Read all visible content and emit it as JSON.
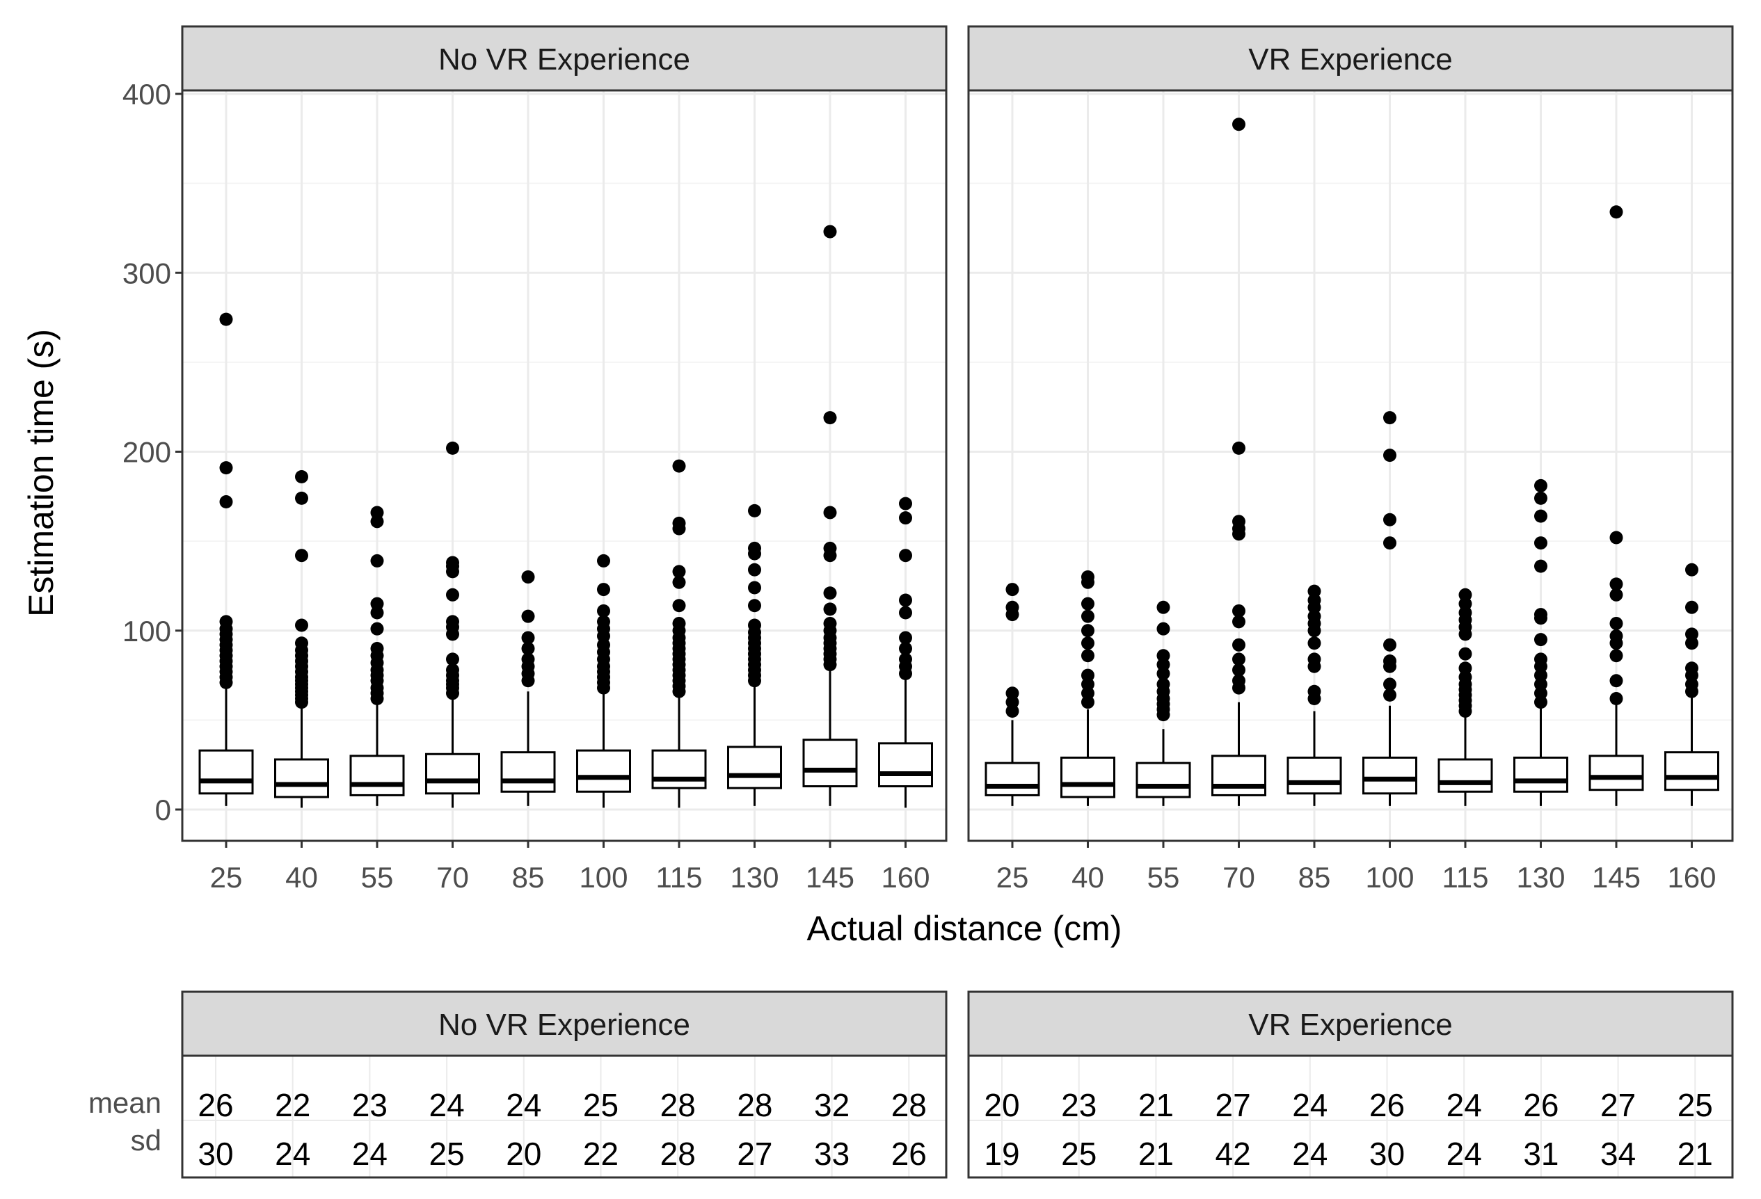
{
  "chart_data": {
    "type": "boxplot",
    "xlabel": "Actual distance (cm)",
    "ylabel": "Estimation time (s)",
    "ylim": [
      -18,
      400
    ],
    "yticks": [
      0,
      100,
      200,
      300,
      400
    ],
    "categories": [
      "25",
      "40",
      "55",
      "70",
      "85",
      "100",
      "115",
      "130",
      "145",
      "160"
    ],
    "panels": [
      {
        "name": "No VR Experience",
        "boxes": [
          {
            "q1": 9,
            "median": 16,
            "q3": 33,
            "lower": 2,
            "upper": 70
          },
          {
            "q1": 7,
            "median": 14,
            "q3": 28,
            "lower": 1,
            "upper": 60
          },
          {
            "q1": 8,
            "median": 14,
            "q3": 30,
            "lower": 2,
            "upper": 62
          },
          {
            "q1": 9,
            "median": 16,
            "q3": 31,
            "lower": 1,
            "upper": 64
          },
          {
            "q1": 10,
            "median": 16,
            "q3": 32,
            "lower": 2,
            "upper": 66
          },
          {
            "q1": 10,
            "median": 18,
            "q3": 33,
            "lower": 1,
            "upper": 67
          },
          {
            "q1": 12,
            "median": 17,
            "q3": 33,
            "lower": 1,
            "upper": 66
          },
          {
            "q1": 12,
            "median": 19,
            "q3": 35,
            "lower": 2,
            "upper": 70
          },
          {
            "q1": 13,
            "median": 22,
            "q3": 39,
            "lower": 2,
            "upper": 80
          },
          {
            "q1": 13,
            "median": 20,
            "q3": 37,
            "lower": 1,
            "upper": 74
          }
        ],
        "outliers": [
          [
            71,
            74,
            77,
            80,
            83,
            86,
            89,
            92,
            95,
            98,
            101,
            105,
            172,
            191,
            274
          ],
          [
            60,
            62,
            64,
            66,
            68,
            70,
            72,
            74,
            77,
            80,
            83,
            86,
            89,
            93,
            103,
            142,
            174,
            186
          ],
          [
            62,
            65,
            68,
            72,
            75,
            78,
            82,
            86,
            90,
            101,
            110,
            115,
            139,
            161,
            166
          ],
          [
            65,
            68,
            70,
            72,
            75,
            78,
            84,
            98,
            102,
            105,
            120,
            133,
            136,
            138,
            202
          ],
          [
            72,
            76,
            80,
            84,
            90,
            96,
            108,
            130
          ],
          [
            68,
            71,
            74,
            77,
            80,
            84,
            88,
            92,
            97,
            101,
            105,
            111,
            123,
            139
          ],
          [
            66,
            69,
            72,
            75,
            78,
            81,
            84,
            87,
            90,
            93,
            96,
            100,
            104,
            114,
            127,
            133,
            157,
            160,
            192
          ],
          [
            72,
            75,
            78,
            81,
            84,
            87,
            90,
            93,
            96,
            99,
            103,
            114,
            124,
            134,
            143,
            146,
            167
          ],
          [
            81,
            84,
            87,
            90,
            93,
            96,
            100,
            104,
            112,
            121,
            142,
            146,
            166,
            219,
            323
          ],
          [
            76,
            80,
            84,
            90,
            96,
            110,
            117,
            142,
            163,
            171
          ]
        ]
      },
      {
        "name": "VR Experience",
        "boxes": [
          {
            "q1": 8,
            "median": 13,
            "q3": 26,
            "lower": 2,
            "upper": 50
          },
          {
            "q1": 7,
            "median": 14,
            "q3": 29,
            "lower": 2,
            "upper": 56
          },
          {
            "q1": 7,
            "median": 13,
            "q3": 26,
            "lower": 2,
            "upper": 45
          },
          {
            "q1": 8,
            "median": 13,
            "q3": 30,
            "lower": 2,
            "upper": 60
          },
          {
            "q1": 9,
            "median": 15,
            "q3": 29,
            "lower": 2,
            "upper": 55
          },
          {
            "q1": 9,
            "median": 17,
            "q3": 29,
            "lower": 2,
            "upper": 58
          },
          {
            "q1": 10,
            "median": 15,
            "q3": 28,
            "lower": 2,
            "upper": 52
          },
          {
            "q1": 10,
            "median": 16,
            "q3": 29,
            "lower": 2,
            "upper": 57
          },
          {
            "q1": 11,
            "median": 18,
            "q3": 30,
            "lower": 2,
            "upper": 60
          },
          {
            "q1": 11,
            "median": 18,
            "q3": 32,
            "lower": 2,
            "upper": 65
          }
        ],
        "outliers": [
          [
            55,
            60,
            65,
            109,
            113,
            123
          ],
          [
            60,
            65,
            70,
            75,
            86,
            93,
            100,
            108,
            115,
            127,
            130
          ],
          [
            53,
            56,
            59,
            62,
            66,
            70,
            76,
            81,
            86,
            101,
            113
          ],
          [
            68,
            72,
            78,
            84,
            92,
            105,
            111,
            154,
            157,
            161,
            202,
            383
          ],
          [
            62,
            66,
            80,
            84,
            93,
            100,
            104,
            108,
            113,
            117,
            122
          ],
          [
            64,
            70,
            80,
            83,
            92,
            149,
            162,
            198,
            219
          ],
          [
            55,
            58,
            61,
            64,
            67,
            70,
            74,
            79,
            87,
            98,
            102,
            106,
            110,
            115,
            120
          ],
          [
            60,
            65,
            70,
            75,
            80,
            84,
            95,
            107,
            109,
            136,
            149,
            164,
            174,
            181
          ],
          [
            62,
            72,
            86,
            93,
            97,
            104,
            120,
            126,
            152,
            334
          ],
          [
            66,
            70,
            75,
            79,
            93,
            98,
            113,
            134
          ]
        ]
      }
    ],
    "summary_table": {
      "row_labels": [
        "mean",
        "sd"
      ],
      "panels": [
        {
          "name": "No VR Experience",
          "mean": [
            "26",
            "22",
            "23",
            "24",
            "24",
            "25",
            "28",
            "28",
            "32",
            "28"
          ],
          "sd": [
            "30",
            "24",
            "24",
            "25",
            "20",
            "22",
            "28",
            "27",
            "33",
            "26"
          ]
        },
        {
          "name": "VR Experience",
          "mean": [
            "20",
            "23",
            "21",
            "27",
            "24",
            "26",
            "24",
            "26",
            "27",
            "25"
          ],
          "sd": [
            "19",
            "25",
            "21",
            "42",
            "24",
            "30",
            "24",
            "31",
            "34",
            "21"
          ]
        }
      ]
    }
  },
  "colors": {
    "strip": "#d9d9d9",
    "border": "#333333",
    "grid_major": "#ebebeb",
    "grid_minor": "#f4f4f4",
    "box_fill": "#ffffff",
    "ink": "#000000",
    "tick_text": "#4d4d4d"
  }
}
